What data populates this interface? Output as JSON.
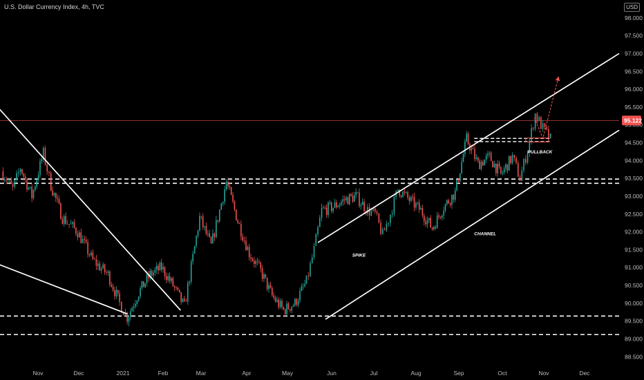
{
  "header": {
    "title": "U.S. Dollar Currency Index, 4h, TVC",
    "currency": "USD"
  },
  "colors": {
    "background": "#000000",
    "up": "#26a69a",
    "down": "#ef5350",
    "drawing": "#ffffff",
    "last_price_line": "#ef5350",
    "last_price_badge": "#ef5350",
    "projection": "#ef5350"
  },
  "chart_data": {
    "type": "candlestick",
    "ylim": [
      88.35,
      98.5
    ],
    "yticks": [
      "98.000",
      "97.500",
      "97.000",
      "96.500",
      "96.000",
      "95.500",
      "95.000",
      "94.500",
      "94.000",
      "93.500",
      "93.000",
      "92.500",
      "92.000",
      "91.500",
      "91.000",
      "90.500",
      "90.000",
      "89.500",
      "89.000",
      "88.500"
    ],
    "ytick_values": [
      98.0,
      97.5,
      97.0,
      96.5,
      96.0,
      95.5,
      95.0,
      94.5,
      94.0,
      93.5,
      93.0,
      92.5,
      92.0,
      91.5,
      91.0,
      90.5,
      90.0,
      89.5,
      89.0,
      88.5
    ],
    "xticks": [
      "Nov",
      "Dec",
      "2021",
      "Feb",
      "Mar",
      "Apr",
      "May",
      "Jun",
      "Jul",
      "Aug",
      "Sep",
      "Oct",
      "Nov",
      "Dec"
    ],
    "last_price": 95.122,
    "last_price_label": "95.122",
    "price_path": [
      [
        0,
        93.7
      ],
      [
        3,
        93.2
      ],
      [
        5,
        93.8
      ],
      [
        8,
        93.0
      ],
      [
        11,
        94.2
      ],
      [
        13,
        93.3
      ],
      [
        16,
        92.4
      ],
      [
        20,
        92.0
      ],
      [
        24,
        91.2
      ],
      [
        28,
        90.8
      ],
      [
        31,
        90.0
      ],
      [
        33,
        89.6
      ],
      [
        36,
        90.3
      ],
      [
        39,
        90.8
      ],
      [
        42,
        91.0
      ],
      [
        45,
        90.5
      ],
      [
        48,
        89.9
      ],
      [
        52,
        92.4
      ],
      [
        55,
        91.6
      ],
      [
        59,
        93.4
      ],
      [
        62,
        92.3
      ],
      [
        65,
        91.4
      ],
      [
        68,
        90.9
      ],
      [
        71,
        90.2
      ],
      [
        74,
        89.8
      ],
      [
        77,
        90.0
      ],
      [
        80,
        90.6
      ],
      [
        82,
        91.5
      ],
      [
        84,
        92.6
      ],
      [
        87,
        92.7
      ],
      [
        90,
        92.9
      ],
      [
        93,
        93.0
      ],
      [
        96,
        92.6
      ],
      [
        98,
        92.5
      ],
      [
        100,
        91.9
      ],
      [
        102,
        92.5
      ],
      [
        104,
        93.2
      ],
      [
        107,
        92.9
      ],
      [
        110,
        92.6
      ],
      [
        113,
        92.1
      ],
      [
        116,
        92.7
      ],
      [
        119,
        93.1
      ],
      [
        122,
        94.6
      ],
      [
        125,
        93.9
      ],
      [
        128,
        94.1
      ],
      [
        131,
        93.6
      ],
      [
        134,
        94.1
      ],
      [
        136,
        93.5
      ],
      [
        138,
        94.3
      ],
      [
        140,
        95.3
      ],
      [
        142,
        94.9
      ],
      [
        144,
        94.6
      ]
    ],
    "channel_lines": [
      {
        "name": "downtrend-resistance",
        "from": [
          -1,
          95.5
        ],
        "to": [
          47,
          89.8
        ]
      },
      {
        "name": "downtrend-support",
        "from": [
          -1,
          91.1
        ],
        "to": [
          33,
          89.7
        ]
      },
      {
        "name": "channel-top",
        "from": [
          83,
          91.7
        ],
        "to": [
          162,
          97.0
        ]
      },
      {
        "name": "channel-bottom",
        "from": [
          85,
          89.55
        ],
        "to": [
          162,
          94.85
        ]
      }
    ],
    "horizontal_levels": [
      93.48,
      93.36,
      89.64,
      89.12
    ],
    "pullback_levels": [
      94.62,
      94.53
    ],
    "pullback_box": {
      "x0": 137.5,
      "x1": 143.5,
      "y0": 94.52,
      "y1": 94.63
    },
    "projection_path": [
      [
        139.8,
        95.2
      ],
      [
        142,
        94.62
      ],
      [
        146,
        96.3
      ]
    ],
    "annotations": [
      {
        "label": "SPIKE",
        "x": 92,
        "y": 91.3
      },
      {
        "label": "CHANNEL",
        "x": 124,
        "y": 91.9
      },
      {
        "label": "PULLBACK",
        "x": 138,
        "y": 94.2
      }
    ]
  }
}
